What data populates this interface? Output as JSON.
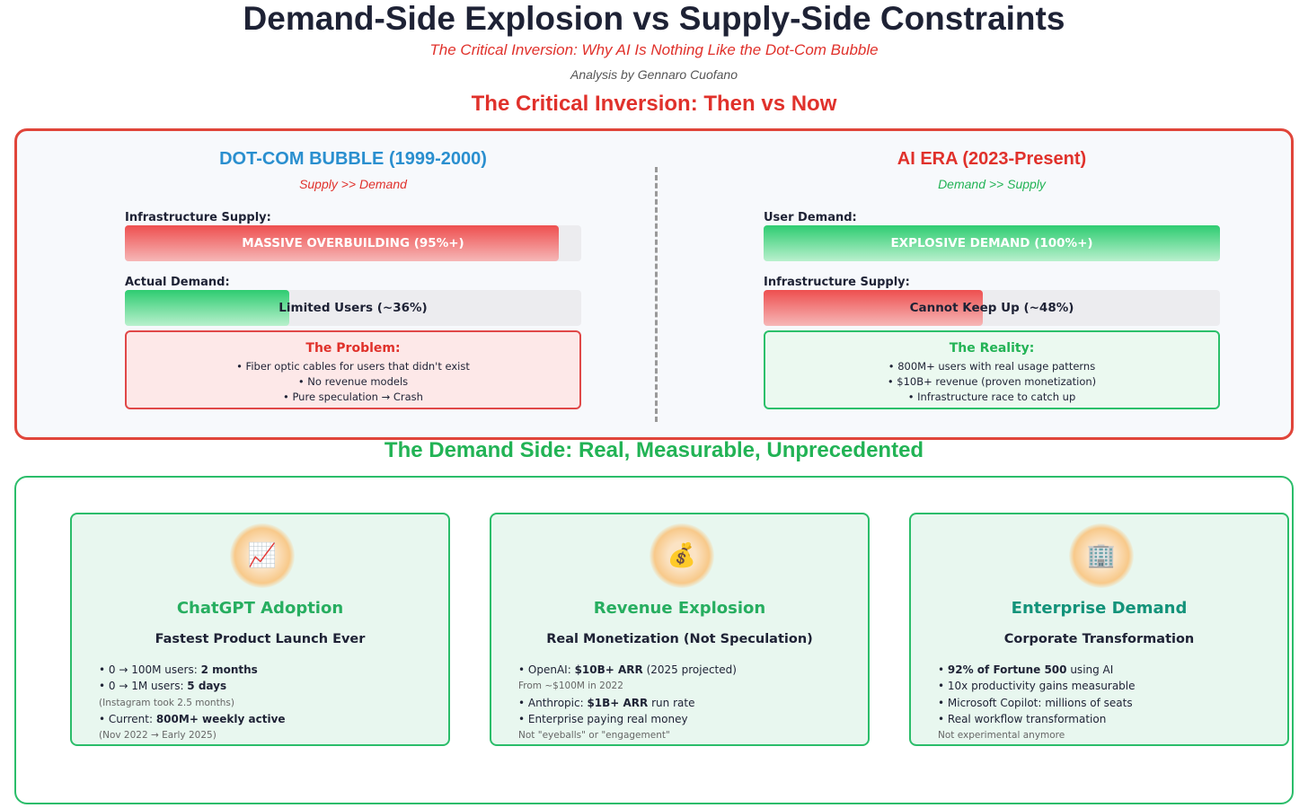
{
  "header": {
    "title": "Demand-Side Explosion vs Supply-Side Constraints",
    "subtitle": "The Critical Inversion: Why AI Is Nothing Like the Dot-Com Bubble",
    "author": "Analysis by Gennaro Cuofano"
  },
  "inversion": {
    "heading": "The Critical Inversion: Then vs Now",
    "columns": [
      {
        "title": "DOT-COM BUBBLE (1999-2000)",
        "title_color": "#2a8fcf",
        "tagline": "Supply >> Demand",
        "tagline_color": "#e0312b",
        "bars": [
          {
            "label": "Infrastructure Supply:",
            "text": "MASSIVE OVERBUILDING (95%+)",
            "value": 95,
            "color": "red",
            "text_color": "#ffffff"
          },
          {
            "label": "Actual Demand:",
            "text": "Limited Users (~36%)",
            "value": 36,
            "color": "green",
            "text_color": "#1e2235"
          }
        ],
        "box": {
          "title": "The Problem:",
          "kind": "red",
          "items": [
            "• Fiber optic cables for users that didn't exist",
            "• No revenue models",
            "• Pure speculation → Crash"
          ]
        }
      },
      {
        "title": "AI ERA (2023-Present)",
        "title_color": "#e0312b",
        "tagline": "Demand >> Supply",
        "tagline_color": "#22b355",
        "bars": [
          {
            "label": "User Demand:",
            "text": "EXPLOSIVE DEMAND (100%+)",
            "value": 100,
            "color": "green",
            "text_color": "#ffffff"
          },
          {
            "label": "Infrastructure Supply:",
            "text": "Cannot Keep Up (~48%)",
            "value": 48,
            "color": "red",
            "text_color": "#1e2235"
          }
        ],
        "box": {
          "title": "The Reality:",
          "kind": "green",
          "items": [
            "• 800M+ users with real usage patterns",
            "• $10B+ revenue (proven monetization)",
            "• Infrastructure race to catch up"
          ]
        }
      }
    ]
  },
  "demand": {
    "heading": "The Demand Side: Real, Measurable, Unprecedented",
    "cards": [
      {
        "icon": "📈",
        "title": "ChatGPT Adoption",
        "title_color": "#27ae60",
        "subtitle": "Fastest Product Launch Ever",
        "lines": [
          {
            "parts": [
              {
                "t": "• 0 → 100M users: "
              },
              {
                "t": "2 months",
                "b": true
              }
            ]
          },
          {
            "parts": [
              {
                "t": "• 0 → 1M users: "
              },
              {
                "t": "5 days",
                "b": true
              }
            ]
          },
          {
            "note": "(Instagram took 2.5 months)"
          },
          {
            "parts": [
              {
                "t": "• Current: "
              },
              {
                "t": "800M+ weekly active",
                "b": true
              }
            ]
          },
          {
            "note": "(Nov 2022 → Early 2025)"
          }
        ]
      },
      {
        "icon": "💰",
        "title": "Revenue Explosion",
        "title_color": "#27ae60",
        "subtitle": "Real Monetization (Not Speculation)",
        "lines": [
          {
            "parts": [
              {
                "t": "• OpenAI: "
              },
              {
                "t": "$10B+ ARR",
                "b": true
              },
              {
                "t": " (2025 projected)"
              }
            ]
          },
          {
            "note": "From ~$100M in 2022"
          },
          {
            "parts": [
              {
                "t": "• Anthropic: "
              },
              {
                "t": "$1B+ ARR",
                "b": true
              },
              {
                "t": " run rate"
              }
            ]
          },
          {
            "parts": [
              {
                "t": "• Enterprise paying real money"
              }
            ]
          },
          {
            "note": "Not \"eyeballs\" or \"engagement\""
          }
        ]
      },
      {
        "icon": "🏢",
        "title": "Enterprise Demand",
        "title_color": "#13937a",
        "subtitle": "Corporate Transformation",
        "lines": [
          {
            "parts": [
              {
                "t": "• "
              },
              {
                "t": "92% of Fortune 500",
                "b": true
              },
              {
                "t": " using AI"
              }
            ]
          },
          {
            "parts": [
              {
                "t": "• 10x productivity gains measurable"
              }
            ]
          },
          {
            "parts": [
              {
                "t": "• Microsoft Copilot: millions of seats"
              }
            ]
          },
          {
            "parts": [
              {
                "t": "• Real workflow transformation"
              }
            ]
          },
          {
            "note": "Not experimental anymore"
          }
        ]
      }
    ]
  }
}
